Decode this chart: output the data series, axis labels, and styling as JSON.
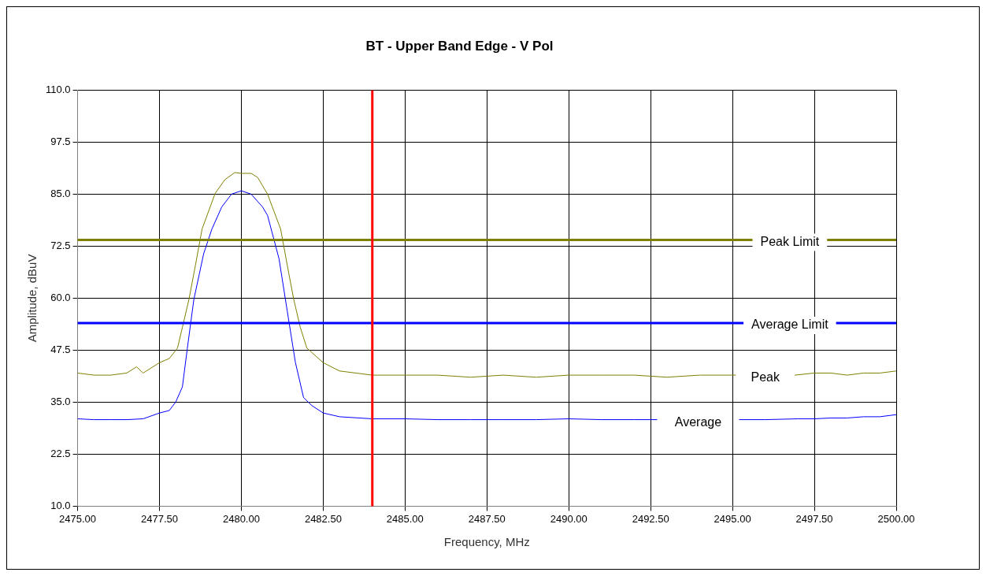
{
  "chart_data": {
    "type": "line",
    "title": "BT - Upper Band Edge - V Pol",
    "xlabel": "Frequency, MHz",
    "ylabel": "Amplitude, dBuV",
    "xlim": [
      2475,
      2500
    ],
    "ylim": [
      10,
      110
    ],
    "xticks": [
      {
        "value": 2475,
        "label": "2475.00"
      },
      {
        "value": 2477.5,
        "label": "2477.50"
      },
      {
        "value": 2480,
        "label": "2480.00"
      },
      {
        "value": 2482.5,
        "label": "2482.50"
      },
      {
        "value": 2485,
        "label": "2485.00"
      },
      {
        "value": 2487.5,
        "label": "2487.50"
      },
      {
        "value": 2490,
        "label": "2490.00"
      },
      {
        "value": 2492.5,
        "label": "2492.50"
      },
      {
        "value": 2495,
        "label": "2495.00"
      },
      {
        "value": 2497.5,
        "label": "2497.50"
      },
      {
        "value": 2500,
        "label": "2500.00"
      }
    ],
    "yticks": [
      {
        "value": 10,
        "label": "10.0"
      },
      {
        "value": 22.5,
        "label": "22.5"
      },
      {
        "value": 35,
        "label": "35.0"
      },
      {
        "value": 47.5,
        "label": "47.5"
      },
      {
        "value": 60,
        "label": "60.0"
      },
      {
        "value": 72.5,
        "label": "72.5"
      },
      {
        "value": 85,
        "label": "85.0"
      },
      {
        "value": 97.5,
        "label": "97.5"
      },
      {
        "value": 110,
        "label": "110.0"
      }
    ],
    "grid": true,
    "legend": false,
    "marker": "none",
    "line_style": "solid",
    "series": [
      {
        "name": "Peak",
        "color": "#808000",
        "x": [
          2475,
          2475.5,
          2476,
          2476.5,
          2476.8,
          2477,
          2477.5,
          2477.8,
          2478.05,
          2478.2,
          2478.4,
          2478.6,
          2478.8,
          2479.2,
          2479.5,
          2479.8,
          2480,
          2480.3,
          2480.5,
          2480.8,
          2481.2,
          2481.4,
          2481.6,
          2481.8,
          2482,
          2482.5,
          2483,
          2483.5,
          2484,
          2485,
          2486,
          2487,
          2488,
          2489,
          2490,
          2491,
          2492,
          2493,
          2494,
          2495.1,
          2496,
          2496.9,
          2497.5,
          2498,
          2498.5,
          2499,
          2499.5,
          2500
        ],
        "values": [
          42,
          41.5,
          41.5,
          42,
          43.5,
          42,
          44.5,
          45.5,
          48,
          53,
          59.7,
          68,
          76.6,
          85.2,
          88.5,
          90.2,
          90,
          90,
          89,
          85,
          76.6,
          68,
          59.7,
          53,
          48,
          44.5,
          42.5,
          42,
          41.5,
          41.5,
          41.5,
          41,
          41.5,
          41,
          41.5,
          41.5,
          41.5,
          41,
          41.5,
          41.5,
          null,
          41.5,
          42,
          42,
          41.5,
          42,
          42,
          42.5
        ]
      },
      {
        "name": "Average",
        "color": "#0000ff",
        "x": [
          2475,
          2475.5,
          2476,
          2476.5,
          2477,
          2477.5,
          2477.8,
          2478,
          2478.2,
          2478.35,
          2478.55,
          2478.85,
          2479.1,
          2479.4,
          2479.7,
          2480,
          2480.3,
          2480.65,
          2480.8,
          2481.15,
          2481.4,
          2481.65,
          2481.9,
          2482.15,
          2482.5,
          2483,
          2484,
          2485,
          2486,
          2487,
          2488,
          2489,
          2490,
          2491,
          2492,
          2492.7,
          2494,
          2495.2,
          2496,
          2497,
          2497.5,
          2498,
          2498.5,
          2499,
          2499.5,
          2500
        ],
        "values": [
          31,
          30.8,
          30.8,
          30.8,
          31,
          32.4,
          33,
          35.1,
          38.7,
          47.9,
          59.7,
          70.7,
          76.6,
          81.9,
          85,
          85.8,
          85,
          81.9,
          79.9,
          69.5,
          57,
          44.6,
          36.1,
          34.2,
          32.4,
          31.5,
          31,
          31,
          30.8,
          30.8,
          30.8,
          30.8,
          31,
          30.8,
          30.8,
          30.8,
          null,
          30.8,
          30.8,
          31,
          31,
          31.2,
          31.2,
          31.5,
          31.5,
          32
        ]
      }
    ],
    "ref_lines": [
      {
        "axis": "y",
        "value": 74,
        "label": "Peak Limit",
        "color": "#808000"
      },
      {
        "axis": "y",
        "value": 54,
        "label": "Average Limit",
        "color": "#0000ff"
      },
      {
        "axis": "x",
        "value": 2484,
        "color": "#ff0000"
      }
    ]
  }
}
